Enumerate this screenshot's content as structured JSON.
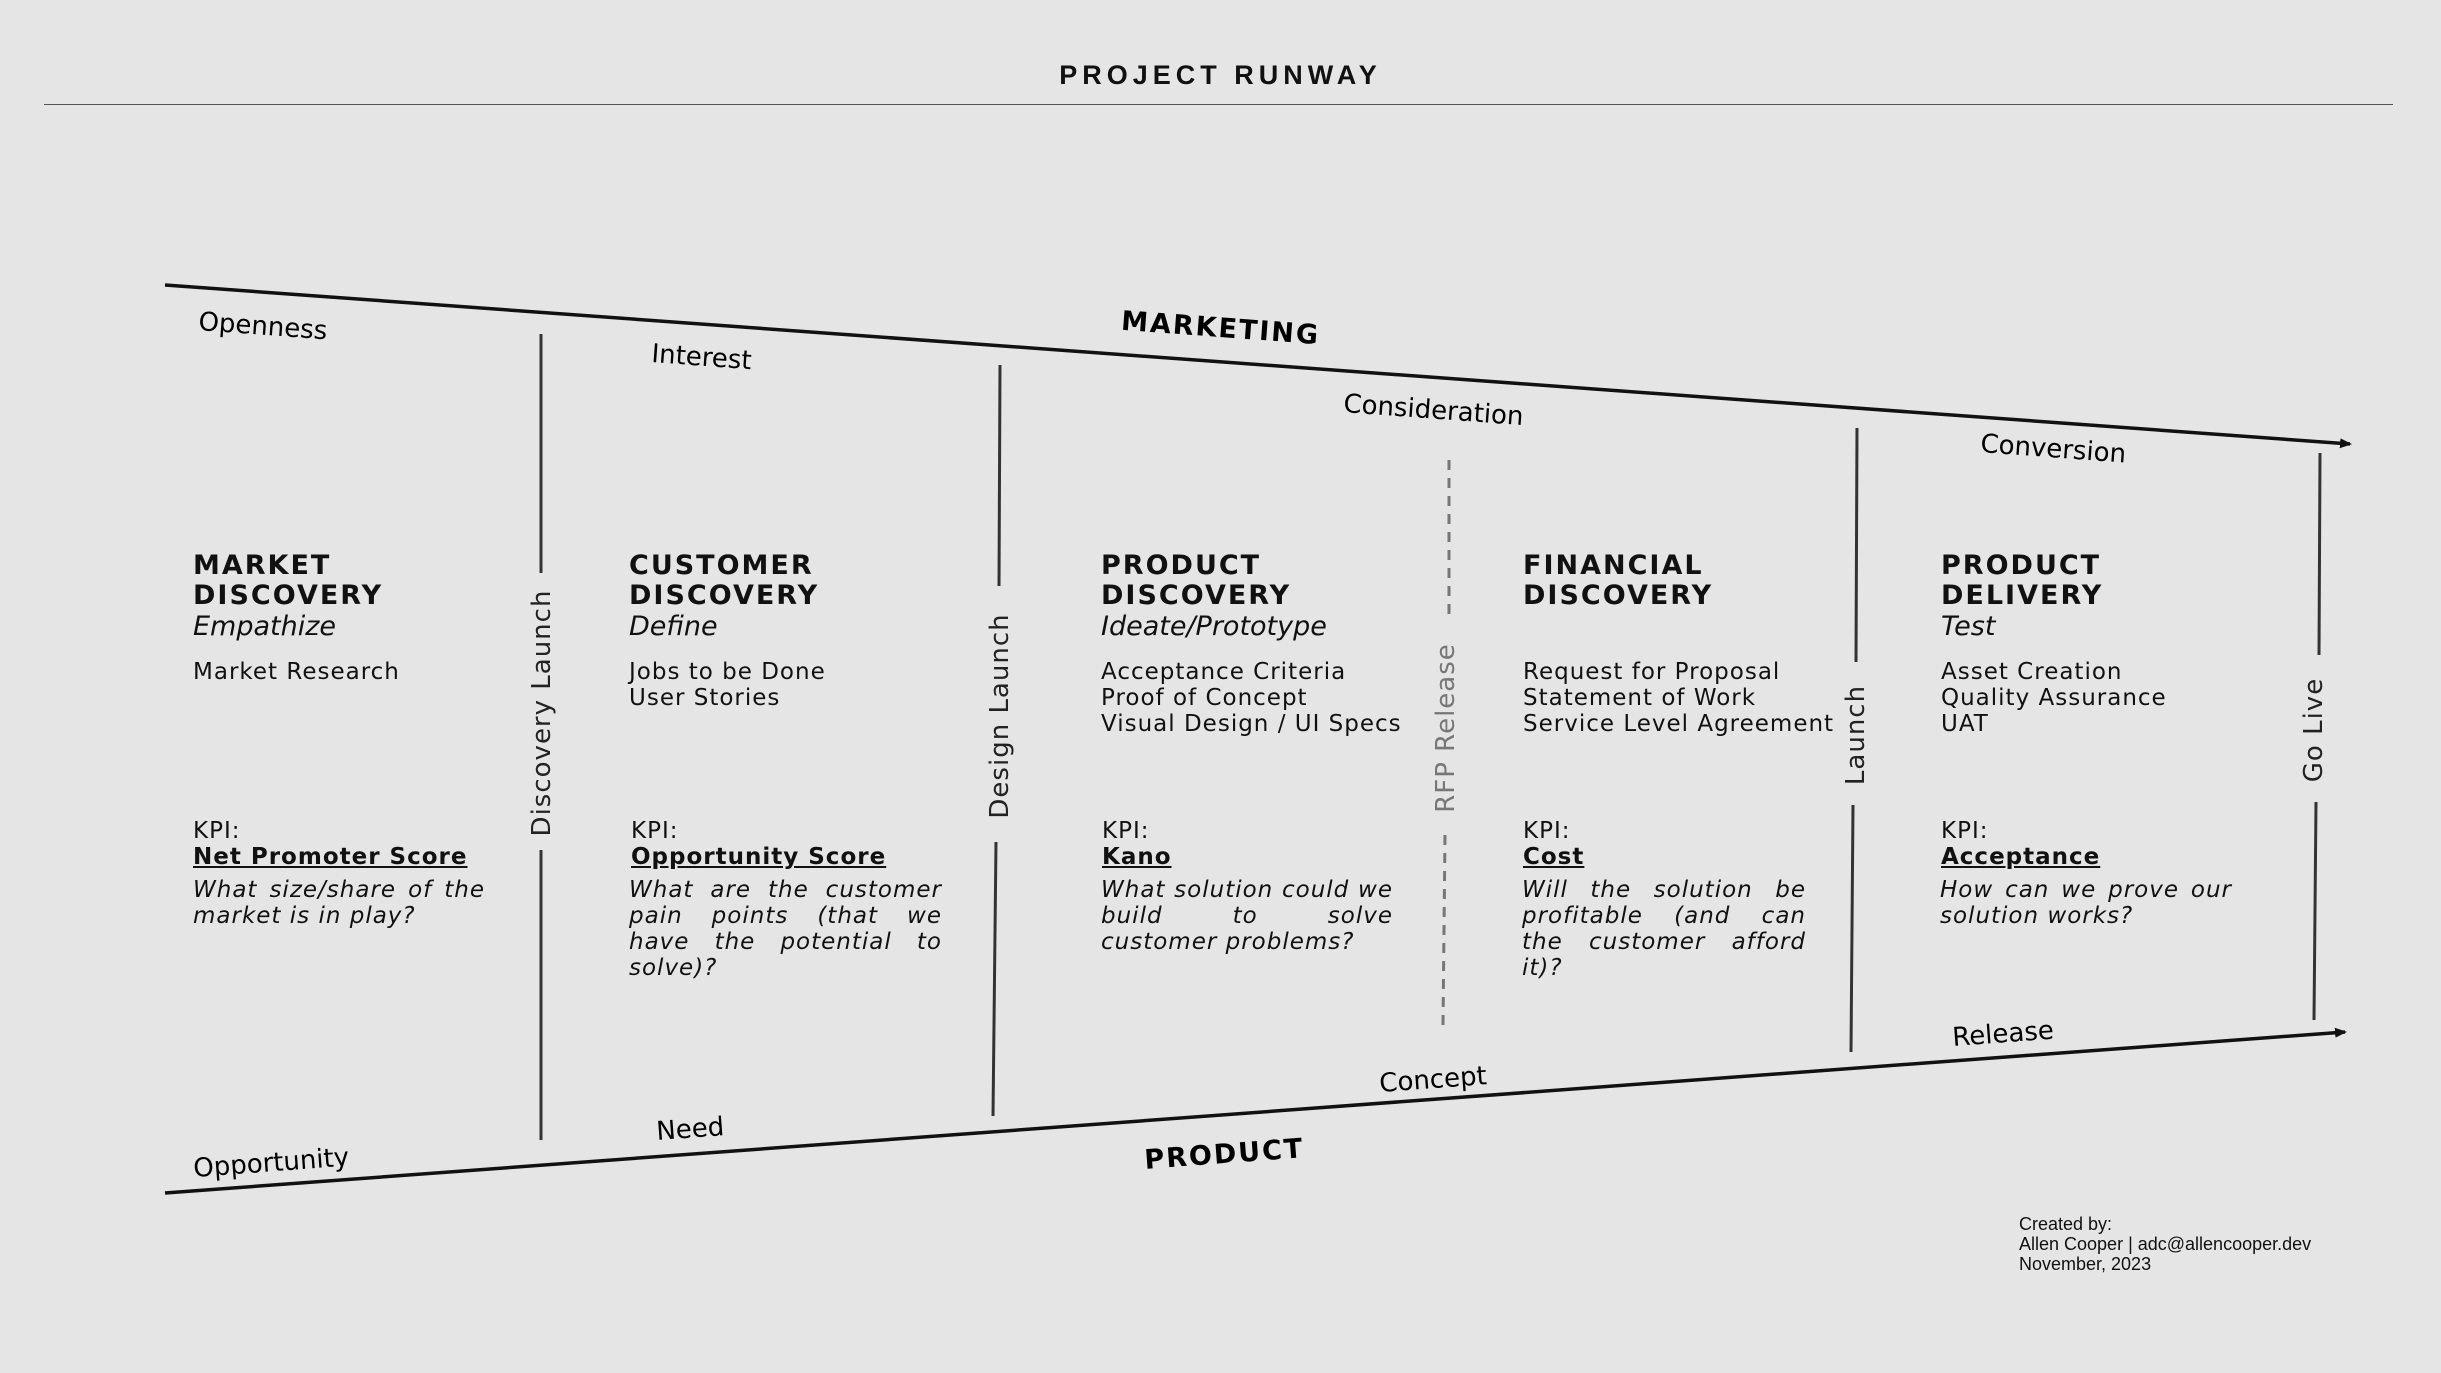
{
  "title": "PROJECT RUNWAY",
  "marketing": {
    "label": "MARKETING",
    "stages": [
      "Openness",
      "Interest",
      "Consideration",
      "Conversion"
    ]
  },
  "product": {
    "label": "PRODUCT",
    "stages": [
      "Opportunity",
      "Need",
      "Concept",
      "Release"
    ]
  },
  "milestones": [
    "Discovery Launch",
    "Design Launch",
    "RFP Release",
    "Launch",
    "Go Live"
  ],
  "kpi_label": "KPI:",
  "phases": [
    {
      "title_line1": "MARKET",
      "title_line2": "DISCOVERY",
      "method": "Empathize",
      "activities": [
        "Market Research"
      ],
      "kpi": "Net Promoter Score",
      "question": "What size/share of the market is in play?"
    },
    {
      "title_line1": "CUSTOMER",
      "title_line2": "DISCOVERY",
      "method": "Define",
      "activities": [
        "Jobs to be Done",
        "User Stories"
      ],
      "kpi": "Opportunity Score",
      "question": "What are the customer pain points (that we have the potential to solve)?"
    },
    {
      "title_line1": "PRODUCT",
      "title_line2": "DISCOVERY",
      "method": "Ideate/Prototype",
      "activities": [
        "Acceptance Criteria",
        "Proof of Concept",
        "Visual Design / UI Specs"
      ],
      "kpi": "Kano",
      "question": "What solution could we build to solve customer problems?"
    },
    {
      "title_line1": "FINANCIAL",
      "title_line2": "DISCOVERY",
      "method": "",
      "activities": [
        "Request for Proposal",
        "Statement of Work",
        "Service Level Agreement"
      ],
      "kpi": "Cost",
      "question": "Will the solution be profitable (and can the customer afford it)?"
    },
    {
      "title_line1": "PRODUCT",
      "title_line2": "DELIVERY",
      "method": "Test",
      "activities": [
        "Asset Creation",
        "Quality Assurance",
        "UAT"
      ],
      "kpi": "Acceptance",
      "question": "How can we prove our solution works?"
    }
  ],
  "credit": {
    "line1": "Created by:",
    "line2": "Allen Cooper | adc@allencooper.dev",
    "line3": "November, 2023"
  }
}
